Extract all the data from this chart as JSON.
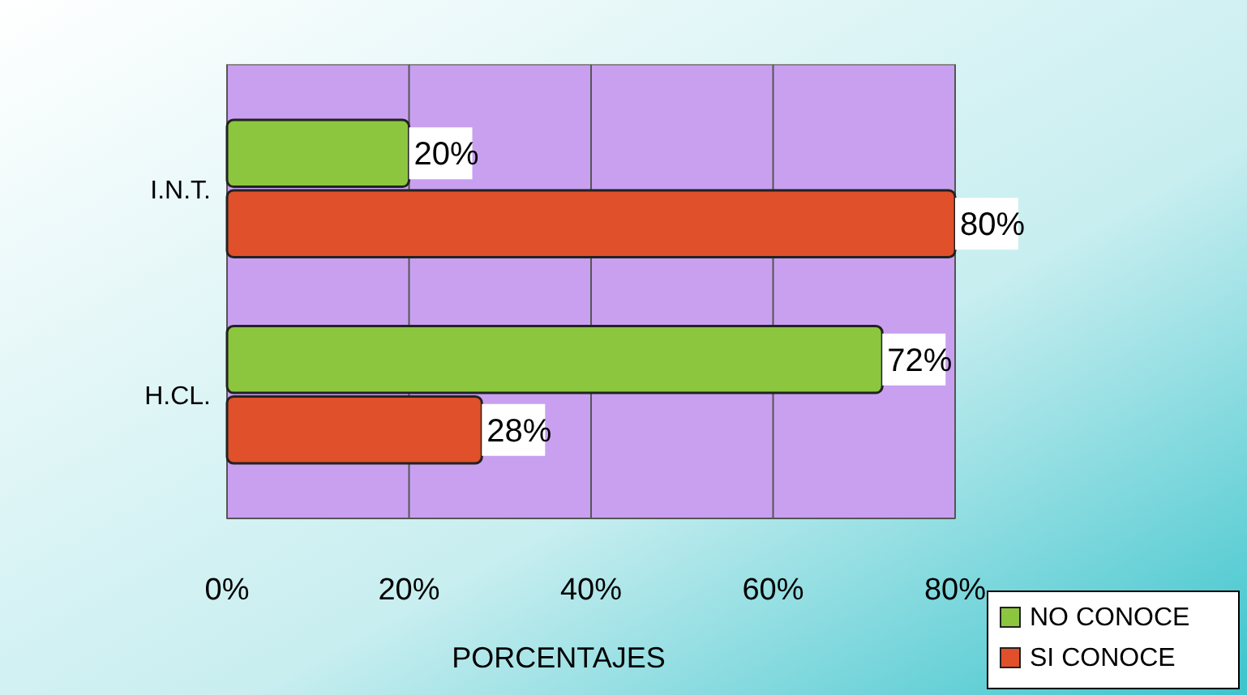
{
  "chart_data": {
    "type": "bar",
    "orientation": "horizontal",
    "xlabel": "PORCENTAJES",
    "categories": [
      "I.N.T.",
      "H.CL."
    ],
    "series": [
      {
        "name": "NO CONOCE",
        "color": "#8cc63f",
        "values": [
          20,
          72
        ],
        "value_labels": [
          "20%",
          "72%"
        ]
      },
      {
        "name": "SI CONOCE",
        "color": "#e0502a",
        "values": [
          80,
          28
        ],
        "value_labels": [
          "80%",
          "28%"
        ]
      }
    ],
    "xlim": [
      0,
      80
    ],
    "xticks": [
      {
        "value": 0,
        "label": "0%"
      },
      {
        "value": 20,
        "label": "20%"
      },
      {
        "value": 40,
        "label": "40%"
      },
      {
        "value": 60,
        "label": "60%"
      },
      {
        "value": 80,
        "label": "80%"
      }
    ],
    "grid": "x",
    "legend": "bottom right"
  }
}
